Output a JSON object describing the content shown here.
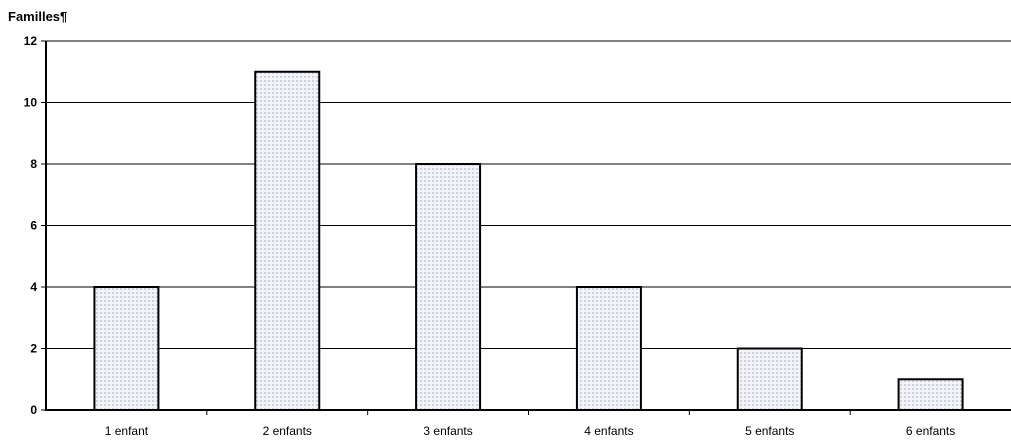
{
  "chart_data": {
    "type": "bar",
    "ylabel": "Familles¶",
    "categories": [
      "1 enfant",
      "2 enfants",
      "3 enfants",
      "4 enfants",
      "5 enfants",
      "6 enfants"
    ],
    "values": [
      4,
      11,
      8,
      4,
      2,
      1
    ],
    "ylim": [
      0,
      12
    ],
    "yticks": [
      "0",
      "2",
      "4",
      "6",
      "8",
      "10",
      "12"
    ],
    "grid": true,
    "legend": "none",
    "colors": {
      "bar_fill": "#f3f3fa",
      "bar_dots": "#9a9ab4",
      "bar_stroke": "#000000",
      "grid": "#000000"
    }
  }
}
